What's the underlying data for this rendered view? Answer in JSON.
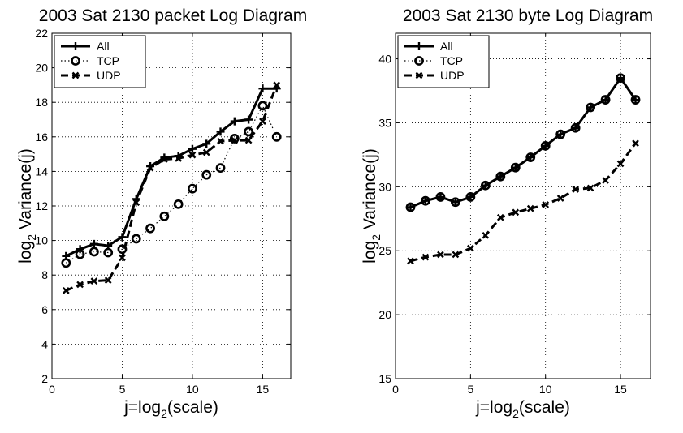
{
  "chart_data": [
    {
      "type": "line",
      "title": "2003 Sat 2130 packet Log Diagram",
      "xlabel": "j=log",
      "xlabel_sub": "2",
      "xlabel_tail": "(scale)",
      "ylabel": "log",
      "ylabel_sub": "2",
      "ylabel_tail": " Variance(j)",
      "xlim": [
        0,
        17
      ],
      "ylim": [
        2,
        22
      ],
      "xticks": [
        0,
        5,
        10,
        15
      ],
      "yticks": [
        2,
        4,
        6,
        8,
        10,
        12,
        14,
        16,
        18,
        20,
        22
      ],
      "grid": true,
      "legend_position": "top-left",
      "x": [
        1,
        2,
        3,
        4,
        5,
        6,
        7,
        8,
        9,
        10,
        11,
        12,
        13,
        14,
        15,
        16
      ],
      "series": [
        {
          "name": "All",
          "style": "solid-plus",
          "values": [
            9.1,
            9.5,
            9.8,
            9.7,
            10.2,
            12.4,
            14.3,
            14.8,
            14.9,
            15.3,
            15.6,
            16.3,
            16.9,
            17.0,
            18.8,
            18.8
          ]
        },
        {
          "name": "TCP",
          "style": "dotted-circle",
          "values": [
            8.7,
            9.2,
            9.35,
            9.3,
            9.5,
            10.1,
            10.7,
            11.4,
            12.1,
            13.0,
            13.8,
            14.2,
            15.9,
            16.3,
            17.8,
            16.0
          ]
        },
        {
          "name": "UDP",
          "style": "dashed-x",
          "values": [
            7.1,
            7.45,
            7.65,
            7.7,
            9.0,
            12.2,
            14.2,
            14.7,
            14.75,
            14.95,
            15.1,
            15.75,
            15.8,
            15.8,
            16.9,
            19.0
          ]
        }
      ]
    },
    {
      "type": "line",
      "title": "2003 Sat 2130 byte Log Diagram",
      "xlabel": "j=log",
      "xlabel_sub": "2",
      "xlabel_tail": "(scale)",
      "ylabel": "log",
      "ylabel_sub": "2",
      "ylabel_tail": " Variance(j)",
      "xlim": [
        0,
        17
      ],
      "ylim": [
        15,
        42
      ],
      "xticks": [
        0,
        5,
        10,
        15
      ],
      "yticks": [
        15,
        20,
        25,
        30,
        35,
        40
      ],
      "grid": true,
      "legend_position": "top-left",
      "x": [
        1,
        2,
        3,
        4,
        5,
        6,
        7,
        8,
        9,
        10,
        11,
        12,
        13,
        14,
        15,
        16
      ],
      "series": [
        {
          "name": "All",
          "style": "solid-plus",
          "values": [
            28.4,
            28.9,
            29.2,
            28.8,
            29.2,
            30.1,
            30.8,
            31.5,
            32.3,
            33.2,
            34.1,
            34.6,
            36.2,
            36.8,
            38.5,
            36.8
          ]
        },
        {
          "name": "TCP",
          "style": "dotted-circle",
          "values": [
            28.4,
            28.9,
            29.2,
            28.8,
            29.2,
            30.1,
            30.8,
            31.5,
            32.3,
            33.2,
            34.1,
            34.6,
            36.2,
            36.8,
            38.5,
            36.8
          ]
        },
        {
          "name": "UDP",
          "style": "dashed-x",
          "values": [
            24.2,
            24.5,
            24.7,
            24.7,
            25.2,
            26.2,
            27.6,
            28.0,
            28.3,
            28.6,
            29.1,
            29.8,
            29.9,
            30.5,
            31.8,
            33.4
          ]
        }
      ]
    }
  ]
}
